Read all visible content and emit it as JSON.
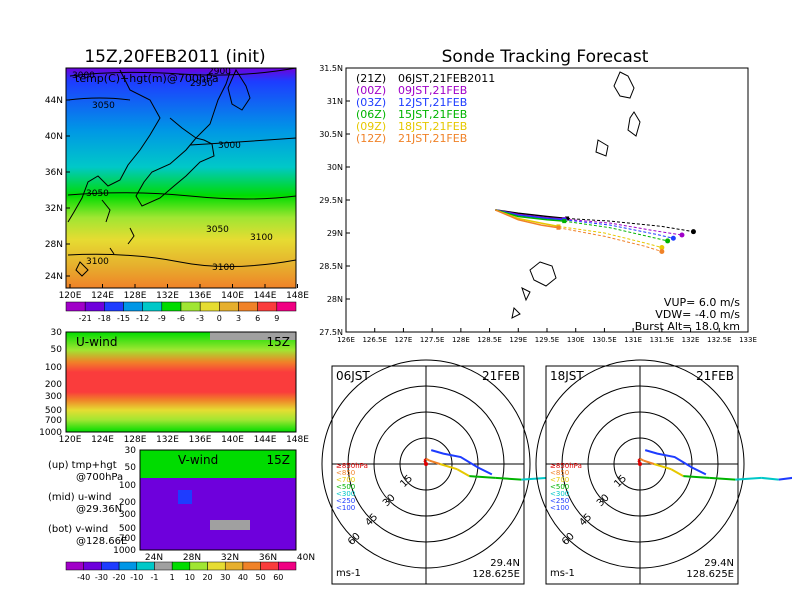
{
  "left_title": "15Z,20FEB2011 (init)",
  "right_title": "Sonde Tracking Forecast",
  "colors": {
    "shade": [
      "#a000c8",
      "#6e00dc",
      "#1e3cff",
      "#0096e6",
      "#00c8c8",
      "#00dc00",
      "#a0e632",
      "#e6dc32",
      "#e6af2d",
      "#f08228",
      "#fa3c3c",
      "#f00082"
    ],
    "track": [
      "#000000",
      "#a000c8",
      "#1e3cff",
      "#00b400",
      "#e6c800",
      "#f08228"
    ]
  },
  "map_panel": {
    "subtitle": "temp(C)+hgt(m)@700hPa",
    "lon_ticks": [
      "120E",
      "124E",
      "128E",
      "132E",
      "136E",
      "140E",
      "144E",
      "148E"
    ],
    "lat_ticks": [
      "44N",
      "40N",
      "36N",
      "32N",
      "28N",
      "24N"
    ],
    "contour_labels": [
      "3000",
      "3050",
      "2950",
      "3000",
      "3050",
      "3050",
      "3100",
      "3100",
      "3100",
      "2900"
    ],
    "colorbar_labels": [
      "-21",
      "-18",
      "-15",
      "-12",
      "-9",
      "-6",
      "-3",
      "0",
      "3",
      "6",
      "9"
    ]
  },
  "u_panel": {
    "label": "U-wind",
    "time": "15Z",
    "p_ticks": [
      "30",
      "50",
      "100",
      "200",
      "300",
      "500",
      "700",
      "1000"
    ],
    "lon_ticks": [
      "120E",
      "124E",
      "128E",
      "132E",
      "136E",
      "140E",
      "144E",
      "148E"
    ]
  },
  "v_panel": {
    "label": "V-wind",
    "time": "15Z",
    "p_ticks": [
      "30",
      "50",
      "100",
      "200",
      "300",
      "500",
      "700",
      "1000"
    ],
    "lat_ticks": [
      "24N",
      "28N",
      "32N",
      "36N",
      "40N"
    ]
  },
  "legend_text": {
    "up": "(up) tmp+hgt",
    "up2": "@700hPa",
    "mid": "(mid) u-wind",
    "mid2": "@29.36N",
    "bot": "(bot) v-wind",
    "bot2": "@128.66E"
  },
  "wind_colorbar_labels": [
    "-40",
    "-30",
    "-20",
    "-10",
    "-1",
    "1",
    "10",
    "20",
    "30",
    "40",
    "50",
    "60"
  ],
  "track_panel": {
    "lon_ticks": [
      "126E",
      "126.5E",
      "127E",
      "127.5E",
      "128E",
      "128.5E",
      "129E",
      "129.5E",
      "130E",
      "130.5E",
      "131E",
      "131.5E",
      "132E",
      "132.5E",
      "133E"
    ],
    "lat_ticks": [
      "31.5N",
      "31N",
      "30.5N",
      "30N",
      "29.5N",
      "29N",
      "28.5N",
      "28N",
      "27.5N"
    ],
    "launches": [
      {
        "z": "(21Z)",
        "jst": "06JST,21FEB2011"
      },
      {
        "z": "(00Z)",
        "jst": "09JST,21FEB"
      },
      {
        "z": "(03Z)",
        "jst": "12JST,21FEB"
      },
      {
        "z": "(06Z)",
        "jst": "15JST,21FEB"
      },
      {
        "z": "(09Z)",
        "jst": "18JST,21FEB"
      },
      {
        "z": "(12Z)",
        "jst": "21JST,21FEB"
      }
    ],
    "vup": "VUP= 6.0 m/s",
    "vdw": "VDW= -4.0 m/s",
    "burst": "Burst Alt= 18.0 km"
  },
  "chart_data": [
    {
      "type": "line",
      "title": "Sonde Tracking Forecast",
      "xlabel": "",
      "ylabel": "",
      "xlim": [
        126,
        133
      ],
      "ylim": [
        27.5,
        31.5
      ],
      "series": [
        {
          "name": "06JST,21FEB2011",
          "ascent": [
            [
              128.6,
              29.35
            ],
            [
              129.0,
              29.3
            ],
            [
              129.5,
              29.25
            ],
            [
              129.85,
              29.22
            ]
          ],
          "descent": [
            [
              129.85,
              29.22
            ],
            [
              130.6,
              29.18
            ],
            [
              131.5,
              29.1
            ],
            [
              132.05,
              29.02
            ]
          ],
          "end": [
            132.05,
            29.02
          ]
        },
        {
          "name": "09JST,21FEB",
          "ascent": [
            [
              128.6,
              29.35
            ],
            [
              129.0,
              29.28
            ],
            [
              129.5,
              29.23
            ],
            [
              129.8,
              29.21
            ]
          ],
          "descent": [
            [
              129.8,
              29.21
            ],
            [
              130.6,
              29.15
            ],
            [
              131.4,
              29.03
            ],
            [
              131.85,
              28.97
            ]
          ],
          "end": [
            131.85,
            28.97
          ]
        },
        {
          "name": "12JST,21FEB",
          "ascent": [
            [
              128.6,
              29.35
            ],
            [
              129.0,
              29.27
            ],
            [
              129.5,
              29.22
            ],
            [
              129.8,
              29.2
            ]
          ],
          "descent": [
            [
              129.8,
              29.2
            ],
            [
              130.6,
              29.12
            ],
            [
              131.4,
              28.98
            ],
            [
              131.7,
              28.92
            ]
          ],
          "end": [
            131.7,
            28.92
          ]
        },
        {
          "name": "15JST,21FEB",
          "ascent": [
            [
              128.6,
              29.35
            ],
            [
              129.0,
              29.25
            ],
            [
              129.5,
              29.2
            ],
            [
              129.8,
              29.18
            ]
          ],
          "descent": [
            [
              129.8,
              29.18
            ],
            [
              130.6,
              29.08
            ],
            [
              131.4,
              28.92
            ],
            [
              131.6,
              28.88
            ]
          ],
          "end": [
            131.6,
            28.88
          ]
        },
        {
          "name": "18JST,21FEB",
          "ascent": [
            [
              128.6,
              29.35
            ],
            [
              129.0,
              29.22
            ],
            [
              129.4,
              29.15
            ],
            [
              129.7,
              29.1
            ]
          ],
          "descent": [
            [
              129.7,
              29.1
            ],
            [
              130.5,
              29.0
            ],
            [
              131.2,
              28.85
            ],
            [
              131.5,
              28.78
            ]
          ],
          "end": [
            131.5,
            28.78
          ]
        },
        {
          "name": "21JST,21FEB",
          "ascent": [
            [
              128.6,
              29.35
            ],
            [
              129.0,
              29.2
            ],
            [
              129.4,
              29.12
            ],
            [
              129.7,
              29.08
            ]
          ],
          "descent": [
            [
              129.7,
              29.08
            ],
            [
              130.5,
              28.95
            ],
            [
              131.2,
              28.8
            ],
            [
              131.5,
              28.72
            ]
          ],
          "end": [
            131.5,
            28.72
          ]
        }
      ]
    },
    {
      "type": "hodograph",
      "time_label": "06JST",
      "date_label": "21FEB",
      "unit": "ms-1",
      "lat": "29.4N",
      "lon": "128.625E",
      "ring_labels": [
        "15",
        "30",
        "45",
        "60"
      ],
      "pressure_labels": [
        "≥850hPa",
        "<850",
        "<700",
        "<500",
        "<300",
        "<250",
        "<100"
      ],
      "profile_uv": [
        [
          0,
          0
        ],
        [
          -1,
          2
        ],
        [
          0,
          3
        ],
        [
          2,
          2
        ],
        [
          8,
          0
        ],
        [
          18,
          -3
        ],
        [
          25,
          -7
        ],
        [
          40,
          -8
        ],
        [
          55,
          -9
        ],
        [
          70,
          -8
        ],
        [
          80,
          -9
        ],
        [
          88,
          -8
        ],
        [
          93,
          -10
        ],
        [
          98,
          -9
        ]
      ],
      "upper_uv": [
        [
          3,
          8
        ],
        [
          10,
          6
        ],
        [
          20,
          4
        ],
        [
          30,
          -2
        ],
        [
          38,
          -6
        ]
      ]
    },
    {
      "type": "hodograph",
      "time_label": "18JST",
      "date_label": "21FEB",
      "unit": "ms-1",
      "lat": "29.4N",
      "lon": "128.625E",
      "ring_labels": [
        "15",
        "30",
        "45",
        "60"
      ],
      "pressure_labels": [
        "≥850hPa",
        "<850",
        "<700",
        "<500",
        "<300",
        "<250",
        "<100"
      ],
      "profile_uv": [
        [
          0,
          0
        ],
        [
          -1,
          2
        ],
        [
          0,
          3
        ],
        [
          2,
          2
        ],
        [
          8,
          0
        ],
        [
          18,
          -3
        ],
        [
          25,
          -7
        ],
        [
          40,
          -8
        ],
        [
          55,
          -9
        ],
        [
          70,
          -8
        ],
        [
          80,
          -9
        ],
        [
          88,
          -8
        ],
        [
          93,
          -10
        ],
        [
          98,
          -9
        ]
      ],
      "upper_uv": [
        [
          3,
          8
        ],
        [
          10,
          6
        ],
        [
          20,
          4
        ],
        [
          30,
          -2
        ],
        [
          38,
          -6
        ]
      ]
    }
  ]
}
